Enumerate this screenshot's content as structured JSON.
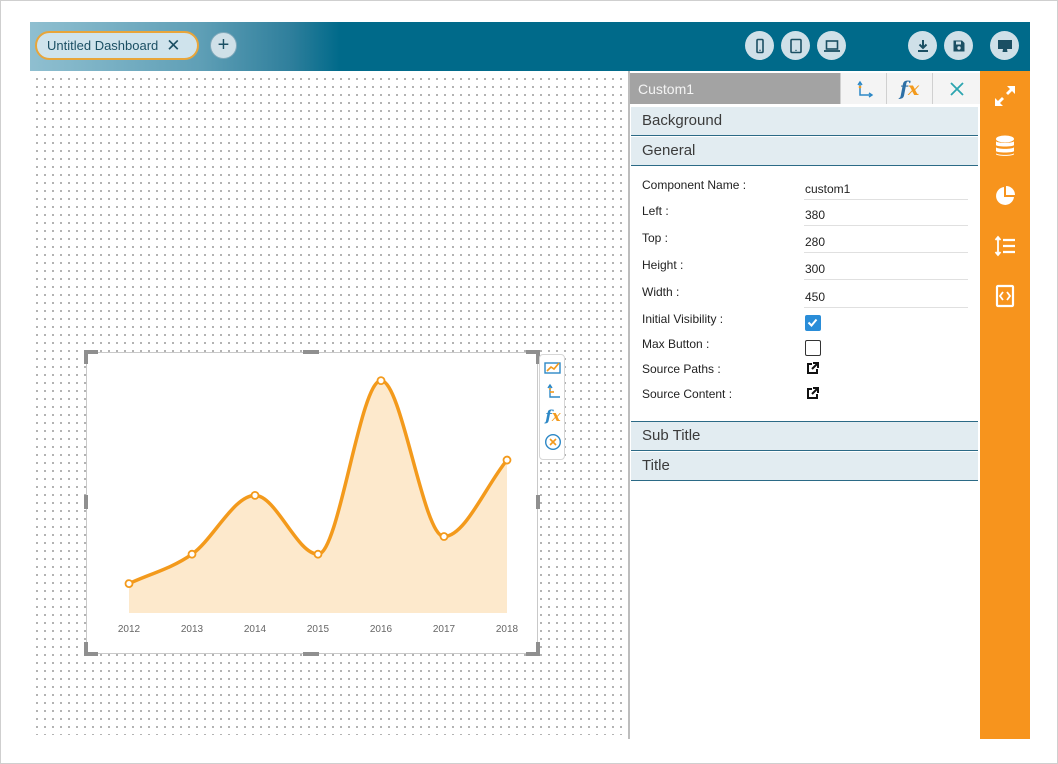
{
  "tab": {
    "label": "Untitled Dashboard",
    "close_glyph": "✕"
  },
  "topbar": {
    "add_glyph": "+",
    "icons": [
      "mobile-icon",
      "tablet-icon",
      "laptop-icon",
      "download-icon",
      "save-icon",
      "desktop-icon"
    ]
  },
  "panel": {
    "title": "Custom1",
    "sections": {
      "background": "Background",
      "general": "General",
      "subtitle": "Sub Title",
      "title": "Title"
    },
    "props": {
      "component_name_label": "Component Name :",
      "component_name": "custom1",
      "left_label": "Left :",
      "left": "380",
      "top_label": "Top :",
      "top": "280",
      "height_label": "Height :",
      "height": "300",
      "width_label": "Width :",
      "width": "450",
      "initial_visibility_label": "Initial Visibility :",
      "initial_visibility": true,
      "max_button_label": "Max Button :",
      "max_button": false,
      "source_paths_label": "Source Paths :",
      "source_content_label": "Source Content :"
    }
  },
  "colors": {
    "accent": "#f7941d",
    "topbar": "#006a8a",
    "line": "#f39a1c",
    "area": "#fde9cc",
    "check": "#2a8dd8"
  },
  "chart_data": {
    "type": "area",
    "categories": [
      "2012",
      "2013",
      "2014",
      "2015",
      "2016",
      "2017",
      "2018"
    ],
    "series": [
      {
        "values": [
          10,
          20,
          40,
          20,
          79,
          26,
          52
        ]
      }
    ],
    "ylim": [
      0,
      85
    ],
    "grid": false,
    "smooth": true
  }
}
